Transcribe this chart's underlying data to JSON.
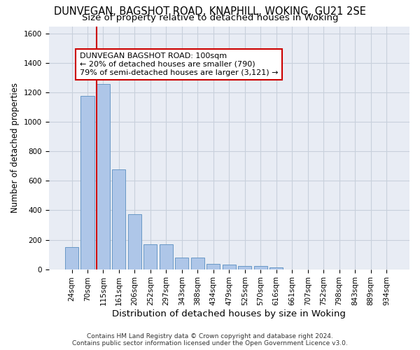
{
  "title_line1": "DUNVEGAN, BAGSHOT ROAD, KNAPHILL, WOKING, GU21 2SE",
  "title_line2": "Size of property relative to detached houses in Woking",
  "xlabel": "Distribution of detached houses by size in Woking",
  "ylabel": "Number of detached properties",
  "categories": [
    "24sqm",
    "70sqm",
    "115sqm",
    "161sqm",
    "206sqm",
    "252sqm",
    "297sqm",
    "343sqm",
    "388sqm",
    "434sqm",
    "479sqm",
    "525sqm",
    "570sqm",
    "616sqm",
    "661sqm",
    "707sqm",
    "752sqm",
    "798sqm",
    "843sqm",
    "889sqm",
    "934sqm"
  ],
  "values": [
    150,
    1175,
    1260,
    680,
    375,
    170,
    170,
    80,
    80,
    35,
    30,
    20,
    20,
    12,
    0,
    0,
    0,
    0,
    0,
    0,
    0
  ],
  "bar_color": "#aec6e8",
  "bar_edge_color": "#5a8fc0",
  "vline_x_index": 2,
  "vline_color": "#cc0000",
  "annotation_line1": "DUNVEGAN BAGSHOT ROAD: 100sqm",
  "annotation_line2": "← 20% of detached houses are smaller (790)",
  "annotation_line3": "79% of semi-detached houses are larger (3,121) →",
  "box_color": "#cc0000",
  "ylim": [
    0,
    1650
  ],
  "yticks": [
    0,
    200,
    400,
    600,
    800,
    1000,
    1200,
    1400,
    1600
  ],
  "grid_color": "#c8d0dc",
  "background_color": "#e8ecf4",
  "footer_line1": "Contains HM Land Registry data © Crown copyright and database right 2024.",
  "footer_line2": "Contains public sector information licensed under the Open Government Licence v3.0.",
  "title_fontsize": 10.5,
  "subtitle_fontsize": 9.5,
  "xlabel_fontsize": 9.5,
  "ylabel_fontsize": 8.5,
  "tick_fontsize": 7.5,
  "annotation_fontsize": 8,
  "footer_fontsize": 6.5
}
